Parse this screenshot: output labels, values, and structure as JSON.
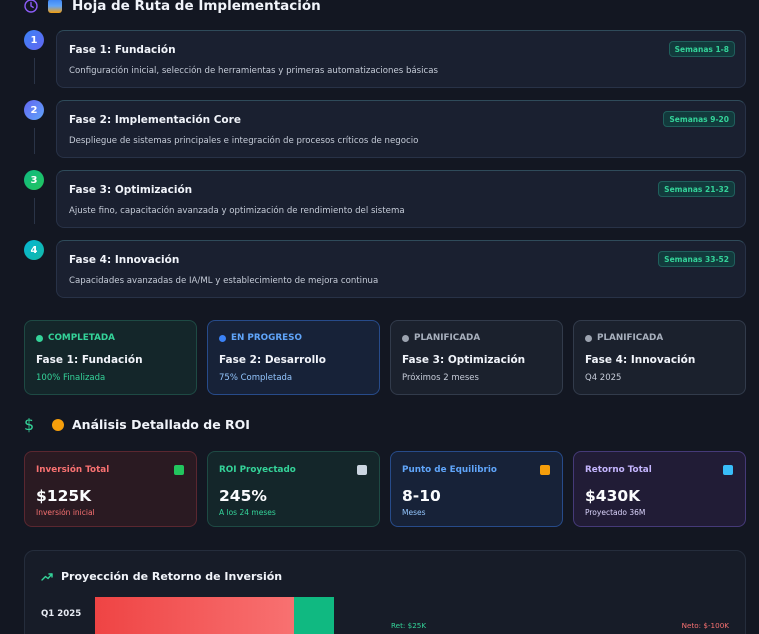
{
  "roadmap": {
    "title": "Hoja de Ruta de Implementación",
    "phases": [
      {
        "number": "1",
        "title": "Fase 1: Fundación",
        "description": "Configuración inicial, selección de herramientas y primeras automatizaciones básicas",
        "badge": "Semanas 1-8",
        "color": "#3b82f6"
      },
      {
        "number": "2",
        "title": "Fase 2: Implementación Core",
        "description": "Despliegue de sistemas principales e integración de procesos críticos de negocio",
        "badge": "Semanas 9-20",
        "color": "#60a5fa"
      },
      {
        "number": "3",
        "title": "Fase 3: Optimización",
        "description": "Ajuste fino, capacitación avanzada y optimización de rendimiento del sistema",
        "badge": "Semanas 21-32",
        "color": "#10b981"
      },
      {
        "number": "4",
        "title": "Fase 4: Innovación",
        "description": "Capacidades avanzadas de IA/ML y establecimiento de mejora continua",
        "badge": "Semanas 33-52",
        "color": "#06b6d4"
      }
    ]
  },
  "status_cards": [
    {
      "label": "COMPLETADA",
      "title": "Fase 1: Fundación",
      "subtitle": "100% Finalizada",
      "dot_color": "#34d399",
      "label_color": "#34d399",
      "sub_color": "#34d399",
      "bg": "#14262a",
      "border": "#1e4a44"
    },
    {
      "label": "EN PROGRESO",
      "title": "Fase 2: Desarrollo",
      "subtitle": "75% Completada",
      "dot_color": "#3b82f6",
      "label_color": "#60a5fa",
      "sub_color": "#93c5fd",
      "bg": "#172238",
      "border": "#274b8a"
    },
    {
      "label": "PLANIFICADA",
      "title": "Fase 3: Optimización",
      "subtitle": "Próximos 2 meses",
      "dot_color": "#9ca3af",
      "label_color": "#a8b0bd",
      "sub_color": "#c6ccd8",
      "bg": "#1b212d",
      "border": "#323b4b"
    },
    {
      "label": "PLANIFICADA",
      "title": "Fase 4: Innovación",
      "subtitle": "Q4 2025",
      "dot_color": "#9ca3af",
      "label_color": "#a8b0bd",
      "sub_color": "#c6ccd8",
      "bg": "#1b212d",
      "border": "#323b4b"
    }
  ],
  "roi": {
    "title": "Análisis Detallado de ROI",
    "metrics": [
      {
        "label": "Inversión Total",
        "value": "$125K",
        "sub": "Inversión inicial",
        "label_color": "#f87171",
        "sub_color": "#f87171",
        "bg": "#2a1a22",
        "border": "#5a2730",
        "icon": "money-wings-icon",
        "icon_color": "#22c55e"
      },
      {
        "label": "ROI Proyectado",
        "value": "245%",
        "sub": "A los 24 meses",
        "label_color": "#34d399",
        "sub_color": "#34d399",
        "bg": "#14262a",
        "border": "#1e4a44",
        "icon": "chart-increasing-icon",
        "icon_color": "#cbd5e1"
      },
      {
        "label": "Punto de Equilibrio",
        "value": "8-10",
        "sub": "Meses",
        "label_color": "#60a5fa",
        "sub_color": "#93c5fd",
        "bg": "#172238",
        "border": "#274b8a",
        "icon": "balance-scale-icon",
        "icon_color": "#f59e0b"
      },
      {
        "label": "Retorno Total",
        "value": "$430K",
        "sub": "Proyectado 36M",
        "label_color": "#c4b5fd",
        "sub_color": "#ddd6fe",
        "bg": "#211c36",
        "border": "#453a78",
        "icon": "gem-icon",
        "icon_color": "#38bdf8"
      }
    ]
  },
  "projection": {
    "title": "Proyección de Retorno de Inversión",
    "rows": [
      {
        "quarter": "Q1 2025",
        "return_label": "Ret: $25K",
        "net_label": "Neto: $-100K"
      }
    ]
  },
  "colors": {
    "accent_green": "#10b981",
    "accent_red": "#ef4444"
  }
}
